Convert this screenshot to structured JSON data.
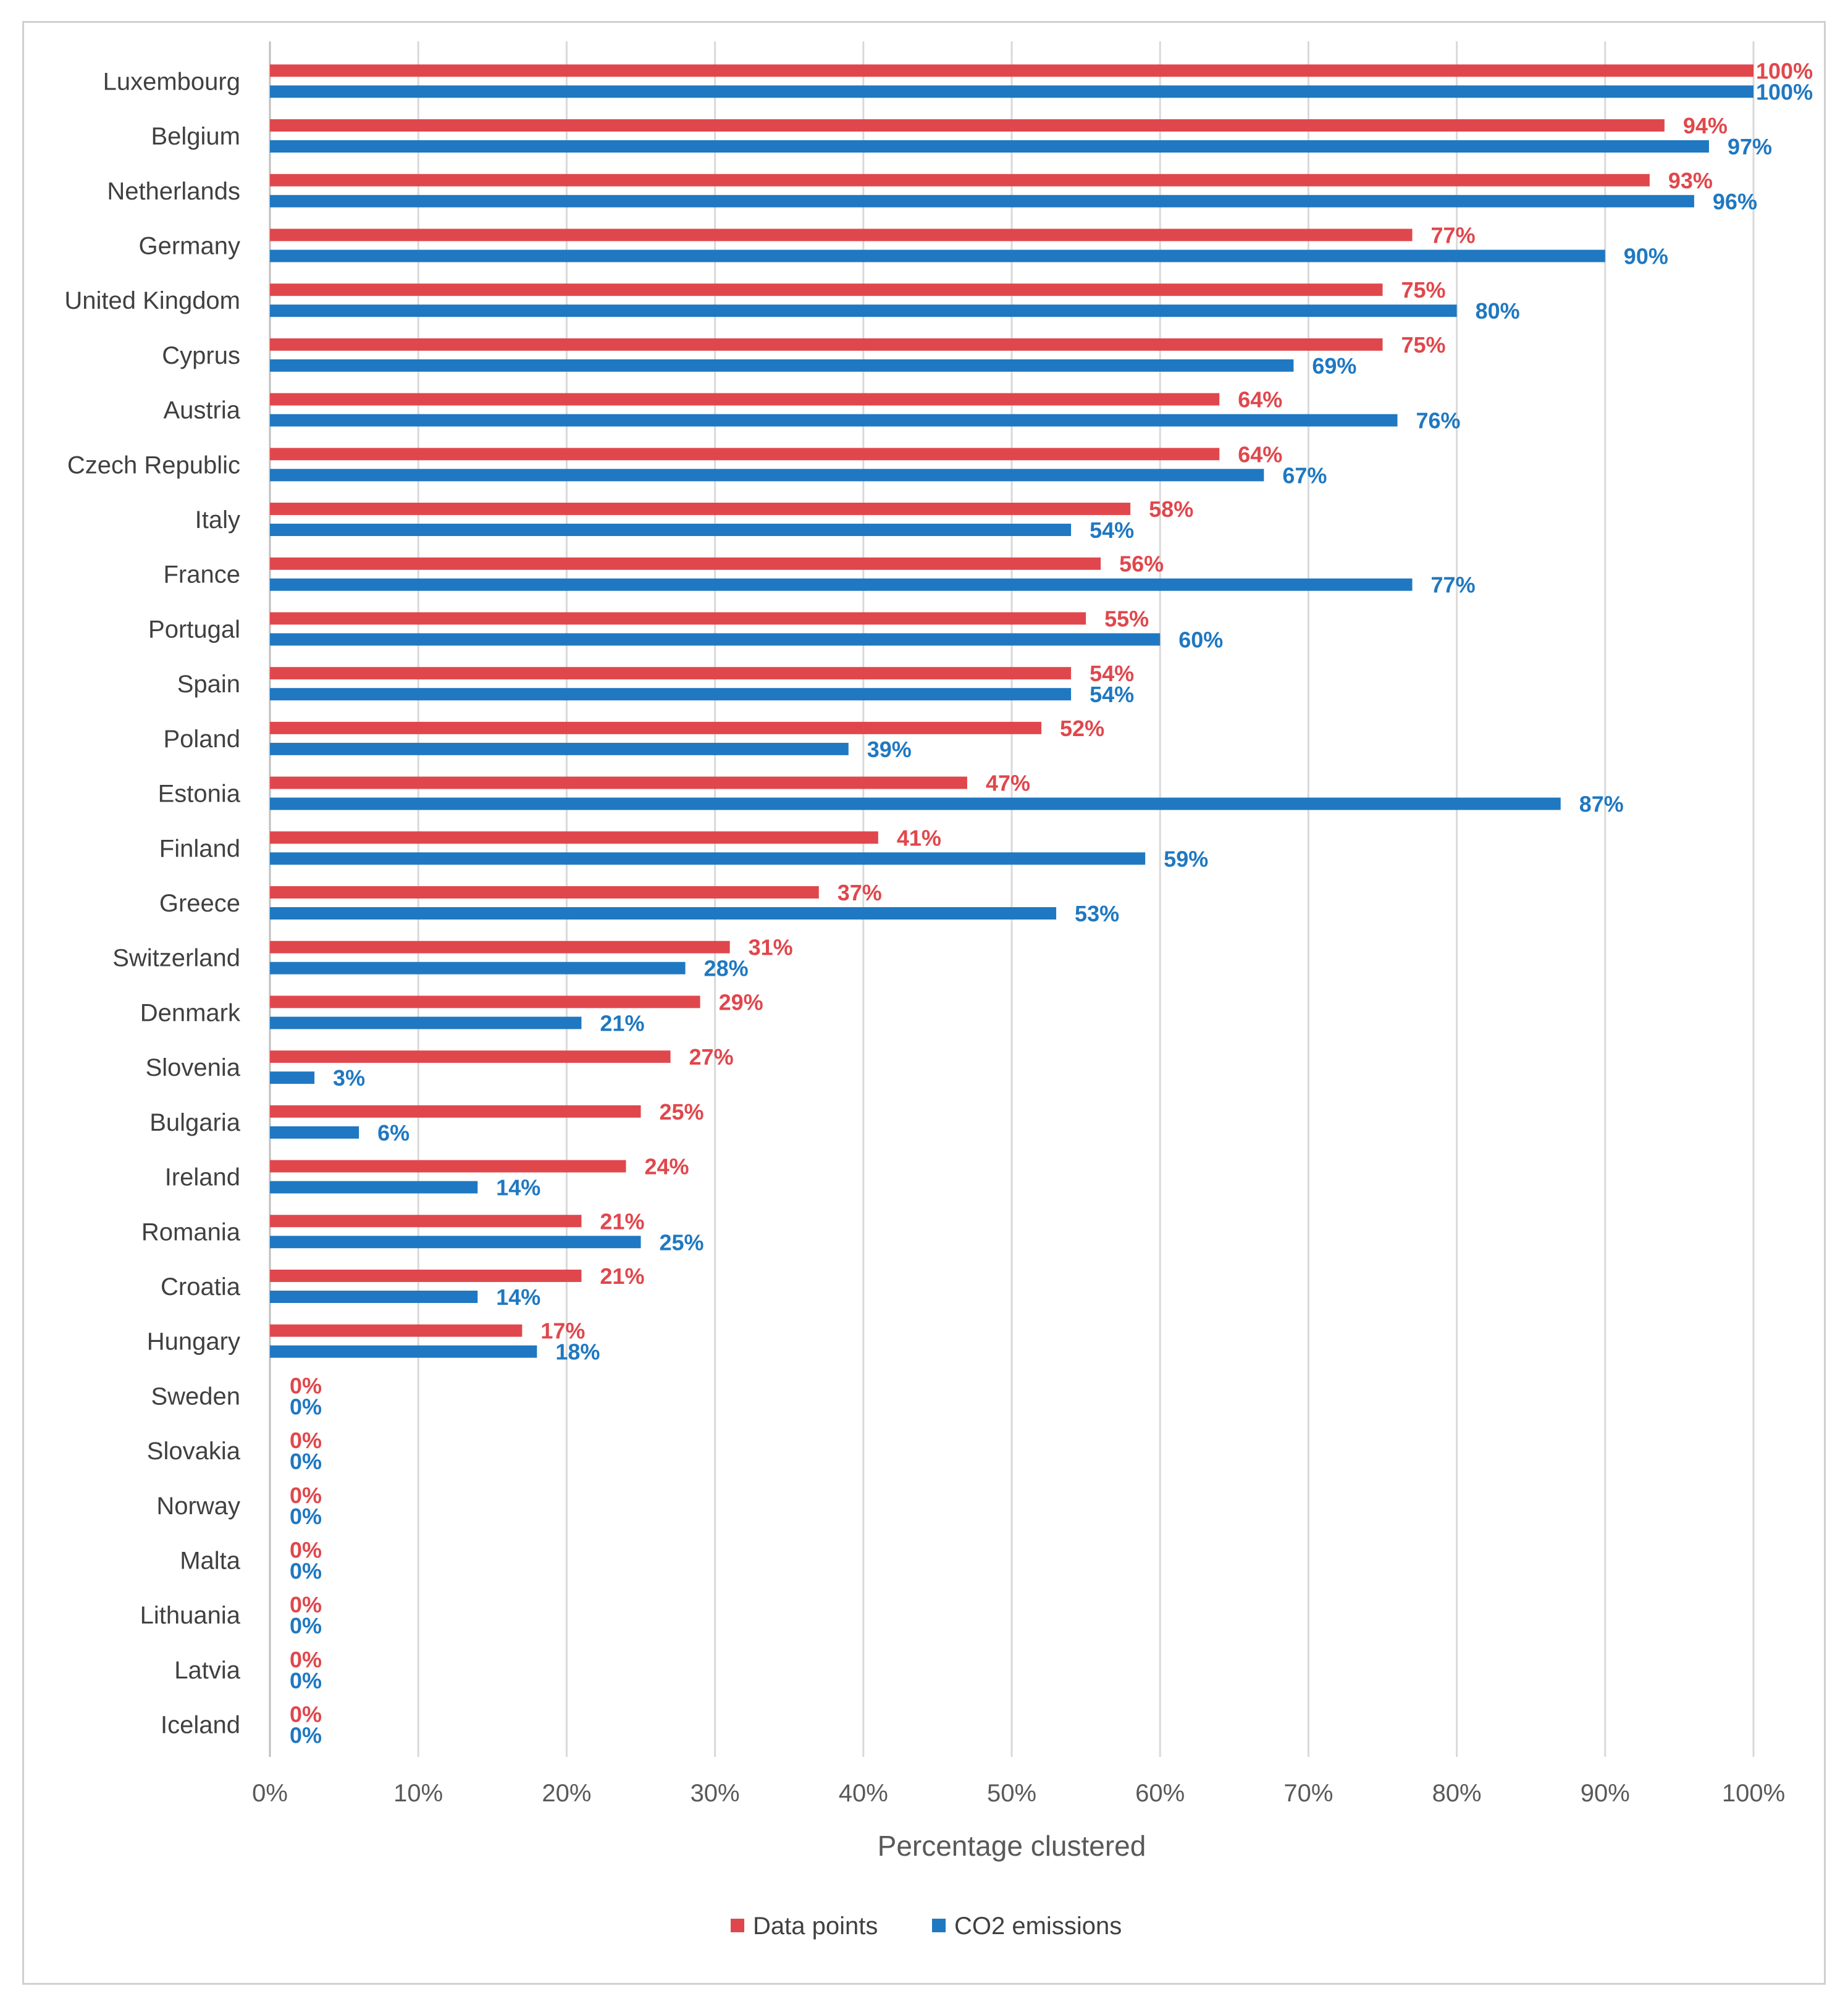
{
  "chart_data": {
    "type": "bar",
    "orientation": "horizontal",
    "categories": [
      "Luxembourg",
      "Belgium",
      "Netherlands",
      "Germany",
      "United Kingdom",
      "Cyprus",
      "Austria",
      "Czech Republic",
      "Italy",
      "France",
      "Portugal",
      "Spain",
      "Poland",
      "Estonia",
      "Finland",
      "Greece",
      "Switzerland",
      "Denmark",
      "Slovenia",
      "Bulgaria",
      "Ireland",
      "Romania",
      "Croatia",
      "Hungary",
      "Sweden",
      "Slovakia",
      "Norway",
      "Malta",
      "Lithuania",
      "Latvia",
      "Iceland"
    ],
    "series": [
      {
        "name": "Data points",
        "color": "#e0474c",
        "values": [
          100,
          94,
          93,
          77,
          75,
          75,
          64,
          64,
          58,
          56,
          55,
          54,
          52,
          47,
          41,
          37,
          31,
          29,
          27,
          25,
          24,
          21,
          21,
          17,
          0,
          0,
          0,
          0,
          0,
          0,
          0
        ],
        "labels": [
          "100%",
          "94%",
          "93%",
          "77%",
          "75%",
          "75%",
          "64%",
          "64%",
          "58%",
          "56%",
          "55%",
          "54%",
          "52%",
          "47%",
          "41%",
          "37%",
          "31%",
          "29%",
          "27%",
          "25%",
          "24%",
          "21%",
          "21%",
          "17%",
          "0%",
          "0%",
          "0%",
          "0%",
          "0%",
          "0%",
          "0%"
        ]
      },
      {
        "name": "CO2 emissions",
        "color": "#1f78c1",
        "values": [
          100,
          97,
          96,
          90,
          80,
          69,
          76,
          67,
          54,
          77,
          60,
          54,
          39,
          87,
          59,
          53,
          28,
          21,
          3,
          6,
          14,
          25,
          14,
          18,
          0,
          0,
          0,
          0,
          0,
          0,
          0
        ],
        "labels": [
          "100%",
          "97%",
          "96%",
          "90%",
          "80%",
          "69%",
          "76%",
          "67%",
          "54%",
          "77%",
          "60%",
          "54%",
          "39%",
          "87%",
          "59%",
          "53%",
          "28%",
          "21%",
          "3%",
          "6%",
          "14%",
          "25%",
          "14%",
          "18%",
          "0%",
          "0%",
          "0%",
          "0%",
          "0%",
          "0%",
          "0%"
        ]
      }
    ],
    "xlabel": "Percentage clustered",
    "ylabel": "",
    "xlim": [
      0,
      100
    ],
    "xticks": [
      "0%",
      "10%",
      "20%",
      "30%",
      "40%",
      "50%",
      "60%",
      "70%",
      "80%",
      "90%",
      "100%"
    ],
    "grid": true,
    "legend_position": "bottom-center"
  }
}
